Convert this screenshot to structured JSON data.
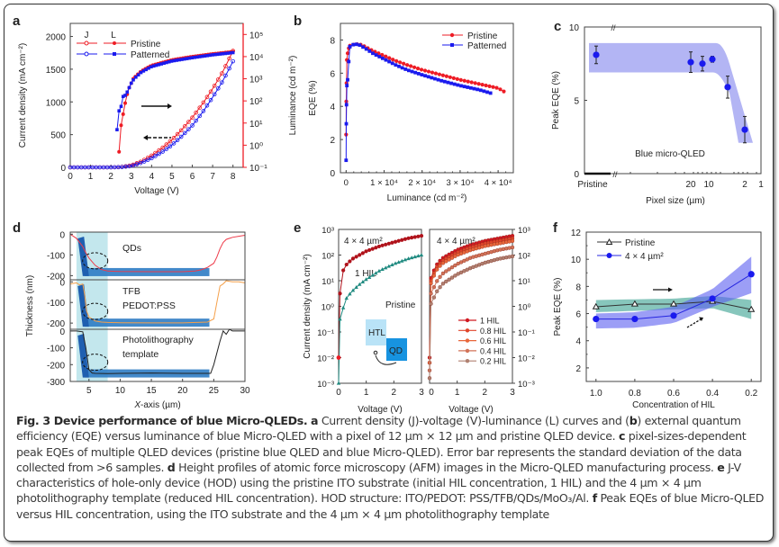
{
  "figure": {
    "caption_title": "Fig. 3 Device performance of blue Micro-QLEDs.",
    "caption_parts": [
      {
        "b": "a"
      },
      {
        "t": " Current density (J)-voltage (V)-luminance (L) curves and ("
      },
      {
        "b": "b"
      },
      {
        "t": ") external quantum efficiency (EQE) versus luminance of blue Micro-QLED with a pixel of 12 µm × 12 µm and pristine QLED device. "
      },
      {
        "b": "c"
      },
      {
        "t": " pixel-sizes-dependent peak EQEs of multiple QLED devices (pristine blue QLED and blue Micro-QLED). Error bar represents the standard deviation of the data collected from >6 samples. "
      },
      {
        "b": "d"
      },
      {
        "t": " Height profiles of atomic force microscopy (AFM) images in the Micro-QLED manufacturing process. "
      },
      {
        "b": "e"
      },
      {
        "t": " J-V characteristics of hole-only device (HOD) using the pristine ITO substrate (initial HIL concentration, 1 HIL) and the 4 µm × 4 µm photolithography template (reduced HIL concentration). HOD structure: ITO/PEDOT: PSS/TFB/QDs/MoO₃/Al. "
      },
      {
        "b": "f"
      },
      {
        "t": " Peak EQEs of blue Micro-QLED versus HIL concentration, using the ITO substrate and the 4 µm × 4 µm photolithography template"
      }
    ]
  },
  "colors": {
    "red": "#ee1c25",
    "blue": "#1a1aee",
    "teal": "#1f8a80",
    "band_blue": "#9a9cf0",
    "band_teal": "#5fb3a6",
    "light_cyan": "#b9e3ea",
    "bar_blue": "#2f7cc4",
    "orange": "#f5a04a",
    "dark_red": "#b0121b"
  },
  "chart_data": [
    {
      "panel": "a",
      "type": "line",
      "xlabel": "Voltage (V)",
      "ylabel": "Current density (mA cm⁻²)",
      "y2label": "Luminance (cd m⁻²)",
      "xlim": [
        0,
        8.5
      ],
      "ylim": [
        0,
        2200
      ],
      "y2lim_log10": [
        -1,
        5.5
      ],
      "xticks": [
        "0",
        "1",
        "2",
        "3",
        "4",
        "5",
        "6",
        "7",
        "8"
      ],
      "yticks": [
        "0",
        "500",
        "1000",
        "1500",
        "2000"
      ],
      "y2ticks": [
        "10⁻¹",
        "10⁰",
        "10¹",
        "10²",
        "10³",
        "10⁴",
        "10⁵"
      ],
      "legend_headers": [
        "J",
        "L"
      ],
      "legend": [
        "Pristine",
        "Patterned"
      ],
      "series": [
        {
          "name": "Pristine J",
          "x": [
            0,
            1,
            2,
            2.5,
            3,
            3.5,
            4,
            4.5,
            5,
            5.5,
            6,
            6.5,
            7,
            7.5,
            8
          ],
          "y": [
            0,
            0,
            0,
            5,
            30,
            90,
            180,
            290,
            420,
            580,
            760,
            970,
            1200,
            1460,
            1780
          ]
        },
        {
          "name": "Patterned J",
          "x": [
            0,
            1,
            2,
            2.5,
            3,
            3.5,
            4,
            4.5,
            5,
            5.5,
            6,
            6.5,
            7,
            7.5,
            8
          ],
          "y": [
            0,
            0,
            0,
            3,
            20,
            70,
            140,
            230,
            340,
            480,
            640,
            840,
            1070,
            1320,
            1620
          ]
        },
        {
          "name": "Pristine L",
          "x": [
            2.4,
            2.5,
            2.6,
            2.7,
            2.8,
            2.9,
            3.0,
            3.1,
            3.2,
            3.5,
            4,
            5,
            6,
            7,
            8
          ],
          "y_log10": [
            -0.3,
            0.9,
            1.4,
            1.9,
            2.3,
            2.6,
            2.8,
            3.0,
            3.1,
            3.35,
            3.6,
            3.85,
            4.0,
            4.12,
            4.22
          ]
        },
        {
          "name": "Patterned L",
          "x": [
            2.3,
            2.4,
            2.5,
            2.6,
            2.7,
            2.8,
            2.9,
            3.0,
            3.1,
            3.2,
            3.5,
            4,
            5,
            6,
            7,
            8
          ],
          "y_log10": [
            0.7,
            1.55,
            1.75,
            2.2,
            2.25,
            2.4,
            2.6,
            2.8,
            2.95,
            3.05,
            3.3,
            3.55,
            3.8,
            3.95,
            4.08,
            4.18
          ]
        }
      ]
    },
    {
      "panel": "b",
      "type": "line",
      "xlabel": "Luminance (cd m⁻²)",
      "ylabel": "EQE (%)",
      "xlim": [
        -1500,
        44000
      ],
      "ylim": [
        0,
        9
      ],
      "xticks": [
        "0",
        "1 × 10⁴",
        "2 × 10⁴",
        "3 × 10⁴",
        "4 × 10⁴"
      ],
      "yticks": [
        "0",
        "2",
        "4",
        "6",
        "8"
      ],
      "legend": [
        "Pristine",
        "Patterned"
      ],
      "series": [
        {
          "name": "Pristine",
          "x": [
            0,
            50,
            100,
            200,
            400,
            700,
            1000,
            1500,
            2500,
            3500,
            5000,
            7000,
            10000,
            13000,
            16000,
            20000,
            25000,
            30000,
            35000,
            40000,
            41500
          ],
          "y": [
            2.3,
            4.3,
            5.4,
            6.8,
            7.2,
            7.5,
            7.65,
            7.7,
            7.75,
            7.75,
            7.6,
            7.35,
            7.05,
            6.75,
            6.5,
            6.2,
            5.9,
            5.6,
            5.35,
            5.1,
            4.9
          ]
        },
        {
          "name": "Patterned",
          "x": [
            0,
            50,
            100,
            200,
            400,
            700,
            1000,
            1500,
            2500,
            3500,
            5000,
            7000,
            10000,
            13000,
            16000,
            20000,
            25000,
            30000,
            35000,
            38000
          ],
          "y": [
            0.75,
            2.95,
            4.1,
            5.25,
            5.6,
            6.7,
            7.6,
            7.7,
            7.75,
            7.7,
            7.5,
            7.2,
            6.85,
            6.5,
            6.2,
            5.9,
            5.55,
            5.25,
            5.0,
            4.8
          ]
        }
      ]
    },
    {
      "panel": "c",
      "type": "scatter",
      "xlabel": "Pixel size (µm)",
      "ylabel": "Peak EQE (%)",
      "ylim": [
        0,
        10
      ],
      "yticks": [
        "0",
        "5",
        "10"
      ],
      "xticks": [
        "Pristine",
        "20",
        "10",
        "2",
        "1"
      ],
      "annotation": "Blue micro-QLED",
      "points": [
        {
          "x": "Pristine",
          "y": 8.1,
          "err": 0.6
        },
        {
          "x": "20",
          "y": 7.6,
          "err": 0.7
        },
        {
          "x": "15",
          "y": 7.5,
          "err": 0.5
        },
        {
          "x": "12",
          "y": 7.8,
          "err": 0.2
        },
        {
          "x": "4",
          "y": 5.9,
          "err": 0.75
        },
        {
          "x": "2",
          "y": 3.0,
          "err": 0.9
        }
      ],
      "band": {
        "upper": 8.9,
        "lower": 6.9,
        "drop_end_lower": 2.1
      }
    },
    {
      "panel": "d",
      "type": "line",
      "xlabel": "X-axis (µm)",
      "ylabel": "Thickness (nm)",
      "xlim": [
        2,
        30
      ],
      "xticks": [
        "5",
        "10",
        "15",
        "20",
        "25",
        "30"
      ],
      "subplots": [
        {
          "label": "QDs",
          "ylim": [
            -220,
            10
          ],
          "yticks": [
            "0",
            "-100",
            "-200"
          ],
          "color": "#ee3b4a",
          "x": [
            2,
            3,
            4,
            4.5,
            5,
            6,
            7,
            8,
            10,
            15,
            20,
            22,
            23,
            24,
            25,
            25.5,
            26,
            26.5,
            27,
            28,
            29,
            30
          ],
          "y": [
            0,
            -20,
            -60,
            -90,
            -115,
            -150,
            -170,
            -178,
            -180,
            -181,
            -181,
            -178,
            -172,
            -160,
            -140,
            -110,
            -70,
            -40,
            -25,
            -15,
            -10,
            -5
          ]
        },
        {
          "label_lines": [
            "TFB",
            "PEDOT:PSS"
          ],
          "ylim": [
            -230,
            10
          ],
          "yticks": [
            "0",
            "-100",
            "-200"
          ],
          "color": "#f5a04a",
          "x": [
            2,
            3,
            3.5,
            4,
            4.3,
            4.6,
            5,
            6,
            7,
            8,
            10,
            15,
            20,
            24,
            25,
            25.5,
            26,
            26.5,
            27,
            28,
            29,
            30
          ],
          "y": [
            -10,
            -5,
            -15,
            -10,
            -60,
            -140,
            -170,
            -190,
            -195,
            -197,
            -198,
            -199,
            -199,
            -195,
            -180,
            -100,
            -20,
            -10,
            5,
            0,
            0,
            -5
          ]
        },
        {
          "label_lines": [
            "Photolithography",
            "template"
          ],
          "ylim": [
            -300,
            10
          ],
          "yticks": [
            "0",
            "-100",
            "-200",
            "-300"
          ],
          "color": "#222222",
          "x": [
            2,
            3,
            4,
            4.5,
            5,
            5.5,
            6,
            8,
            10,
            15,
            20,
            24.5,
            25,
            26,
            26.5,
            27,
            27.5,
            28,
            29,
            30
          ],
          "y": [
            0,
            0,
            -5,
            -100,
            -230,
            -250,
            -252,
            -253,
            -252,
            -250,
            -252,
            -252,
            -200,
            -60,
            0,
            -20,
            10,
            0,
            0,
            0
          ]
        }
      ]
    },
    {
      "panel": "e",
      "type": "line",
      "xlabel_left": "Voltage (V)",
      "xlabel_right": "Voltage (V)",
      "ylabel": "Current density (mA cm⁻²)",
      "xlim": [
        0,
        3
      ],
      "ylim_log10": [
        -3,
        3
      ],
      "xticks_left": [
        "0",
        "1",
        "2",
        "3"
      ],
      "xticks_right": [
        "0",
        "1",
        "2",
        "3"
      ],
      "yticks": [
        "10⁻³",
        "10⁻²",
        "10⁻¹",
        "10⁰",
        "10¹",
        "10²",
        "10³"
      ],
      "left_title": "4 × 4 µm²",
      "right_title": "4 × 4 µm²",
      "left_labels": [
        "1 HIL",
        "Pristine"
      ],
      "inset_labels": [
        "HTL",
        "QD"
      ],
      "left_series": [
        {
          "name": "4 × 4 µm² (1 HIL)",
          "color": "#b0121b",
          "x": [
            0,
            0.05,
            0.1,
            0.2,
            0.3,
            0.5,
            0.75,
            1,
            1.5,
            2,
            2.5,
            3
          ],
          "y_log10": [
            -2,
            0.5,
            1.2,
            1.5,
            1.65,
            1.85,
            2.0,
            2.15,
            2.35,
            2.5,
            2.65,
            2.75
          ]
        },
        {
          "name": "Pristine",
          "color": "#1f8a80",
          "x": [
            0,
            0.05,
            0.1,
            0.2,
            0.3,
            0.5,
            0.75,
            1,
            1.5,
            2,
            2.5,
            3
          ],
          "y_log10": [
            -3,
            -0.5,
            -0.4,
            0.1,
            0.35,
            0.6,
            0.85,
            1.05,
            1.4,
            1.65,
            1.85,
            2.0
          ]
        }
      ],
      "legend": [
        "1 HIL",
        "0.8 HIL",
        "0.6 HIL",
        "0.4 HIL",
        "0.2 HIL"
      ],
      "right_series": [
        {
          "name": "1 HIL",
          "color": "#d11a22",
          "x": [
            0,
            0.05,
            0.1,
            0.2,
            0.3,
            0.5,
            1,
            1.5,
            2,
            2.5,
            3
          ],
          "y_log10": [
            -2,
            1.1,
            1.25,
            1.5,
            1.7,
            1.9,
            2.2,
            2.4,
            2.55,
            2.65,
            2.75
          ]
        },
        {
          "name": "0.8 HIL",
          "color": "#e0452a",
          "x": [
            0,
            0.05,
            0.1,
            0.2,
            0.3,
            0.5,
            1,
            1.5,
            2,
            2.5,
            3
          ],
          "y_log10": [
            -2.2,
            1.0,
            1.15,
            1.4,
            1.6,
            1.8,
            2.1,
            2.3,
            2.45,
            2.55,
            2.65
          ]
        },
        {
          "name": "0.6 HIL",
          "color": "#e8663a",
          "x": [
            0,
            0.05,
            0.1,
            0.2,
            0.3,
            0.5,
            1,
            1.5,
            2,
            2.5,
            3
          ],
          "y_log10": [
            -2.2,
            0.9,
            1.05,
            1.3,
            1.5,
            1.7,
            2.0,
            2.2,
            2.35,
            2.45,
            2.55
          ]
        },
        {
          "name": "0.4 HIL",
          "color": "#d27358",
          "x": [
            0,
            0.05,
            0.1,
            0.2,
            0.3,
            0.5,
            1,
            1.5,
            2,
            2.5,
            3
          ],
          "y_log10": [
            -2.5,
            0.5,
            0.6,
            0.85,
            1.05,
            1.3,
            1.65,
            1.9,
            2.05,
            2.2,
            2.3
          ]
        },
        {
          "name": "0.2 HIL",
          "color": "#b08070",
          "x": [
            0,
            0.05,
            0.1,
            0.2,
            0.3,
            0.5,
            1,
            1.5,
            2,
            2.5,
            3
          ],
          "y_log10": [
            -2.8,
            0.1,
            0.2,
            0.45,
            0.65,
            0.9,
            1.25,
            1.5,
            1.7,
            1.85,
            1.95
          ]
        }
      ]
    },
    {
      "panel": "f",
      "type": "line",
      "xlabel": "Concentration of HIL",
      "ylabel": "Peak EQE (%)",
      "xlim": [
        1.05,
        0.15
      ],
      "ylim": [
        1,
        12
      ],
      "xticks": [
        "1.0",
        "0.8",
        "0.6",
        "0.4",
        "0.2"
      ],
      "yticks": [
        "2",
        "4",
        "6",
        "8",
        "10",
        "12"
      ],
      "legend": [
        "Pristine",
        "4 × 4 µm²"
      ],
      "series": [
        {
          "name": "Pristine",
          "x": [
            1.0,
            0.8,
            0.6,
            0.4,
            0.2
          ],
          "y": [
            6.5,
            6.7,
            6.7,
            6.9,
            6.3
          ],
          "band_upper": [
            7.0,
            7.05,
            7.1,
            7.3,
            7.0
          ],
          "band_lower": [
            6.1,
            6.2,
            6.3,
            6.4,
            5.6
          ]
        },
        {
          "name": "4 × 4 µm²",
          "x": [
            1.0,
            0.8,
            0.6,
            0.4,
            0.2
          ],
          "y": [
            5.6,
            5.6,
            5.85,
            7.1,
            8.9
          ],
          "band_upper": [
            6.0,
            6.1,
            6.5,
            7.8,
            10.2
          ],
          "band_lower": [
            4.9,
            4.95,
            5.3,
            6.5,
            7.5
          ]
        }
      ]
    }
  ]
}
